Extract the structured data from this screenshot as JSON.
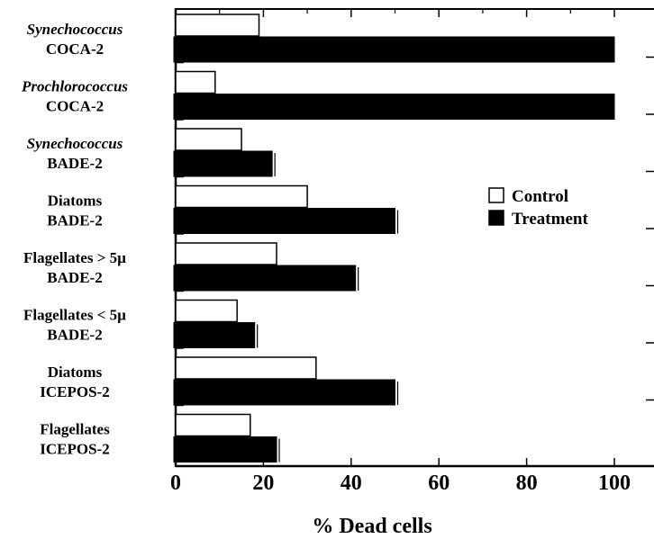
{
  "chart_data": {
    "type": "bar",
    "orientation": "horizontal",
    "xlabel": "% Dead cells",
    "xlim": [
      0,
      100
    ],
    "xticks": [
      "0",
      "20",
      "40",
      "60",
      "80",
      "100"
    ],
    "legend": {
      "position": "right",
      "entries": [
        "Control",
        "Treatment"
      ]
    },
    "categories": [
      {
        "line1": "Synechococcus",
        "line1_italic": true,
        "line2": "COCA-2"
      },
      {
        "line1": "Prochlorococcus",
        "line1_italic": true,
        "line2": "COCA-2"
      },
      {
        "line1": "Synechococcus",
        "line1_italic": true,
        "line2": "BADE-2"
      },
      {
        "line1": "Diatoms",
        "line1_italic": false,
        "line2": "BADE-2"
      },
      {
        "line1": "Flagellates > 5µ",
        "line1_italic": false,
        "line2": "BADE-2"
      },
      {
        "line1": "Flagellates < 5µ",
        "line1_italic": false,
        "line2": "BADE-2"
      },
      {
        "line1": "Diatoms",
        "line1_italic": false,
        "line2": "ICEPOS-2"
      },
      {
        "line1": "Flagellates",
        "line1_italic": false,
        "line2": "ICEPOS-2"
      }
    ],
    "series": [
      {
        "name": "Control",
        "color": "#ffffff",
        "values": [
          19,
          9,
          15,
          30,
          23,
          14,
          32,
          17
        ]
      },
      {
        "name": "Treatment",
        "color": "#000000",
        "values": [
          100,
          100,
          22,
          50,
          41,
          18,
          50,
          23
        ]
      }
    ]
  }
}
